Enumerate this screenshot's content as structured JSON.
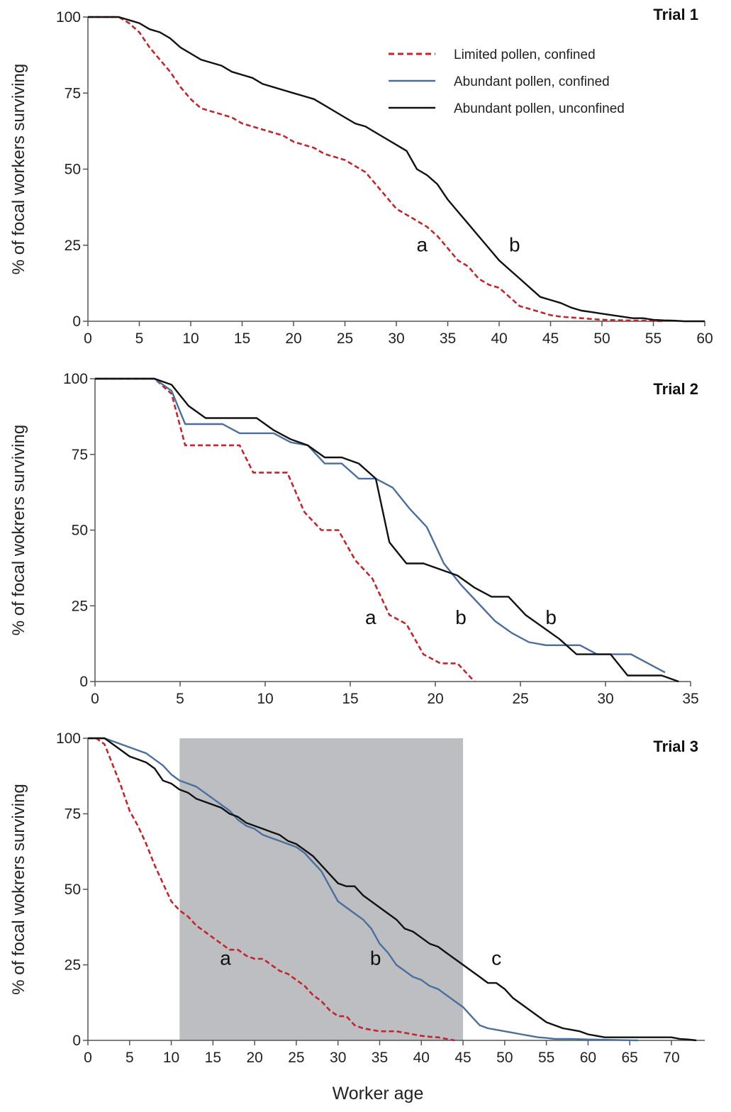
{
  "xlabel": "Worker age",
  "legend": [
    {
      "label": "Limited pollen, confined",
      "color": "#c0272d",
      "dash": true
    },
    {
      "label": "Abundant pollen, confined",
      "color": "#4a6f9c",
      "dash": false
    },
    {
      "label": "Abundant pollen, unconfined",
      "color": "#111111",
      "dash": false
    }
  ],
  "chart_data": [
    {
      "type": "line",
      "title": "Trial 1",
      "ylabel": "% of focal workers surviving",
      "xlim": [
        0,
        60
      ],
      "ylim": [
        0,
        100
      ],
      "xticks": [
        0,
        5,
        10,
        15,
        20,
        25,
        30,
        35,
        40,
        45,
        50,
        55,
        60
      ],
      "yticks": [
        0,
        25,
        50,
        75,
        100
      ],
      "series": [
        {
          "name": "Limited pollen, confined",
          "color": "#c0272d",
          "dash": true,
          "x": [
            0,
            3,
            4,
            5,
            6,
            7,
            8,
            9,
            10,
            11,
            12,
            13,
            14,
            15,
            16,
            17,
            18,
            19,
            20,
            21,
            22,
            23,
            24,
            25,
            26,
            27,
            28,
            29,
            30,
            31,
            32,
            33,
            34,
            35,
            36,
            37,
            38,
            39,
            40,
            41,
            42,
            43,
            44,
            45,
            46,
            48,
            50,
            52,
            54,
            56
          ],
          "y": [
            100,
            100,
            98,
            95,
            90,
            86,
            82,
            77,
            73,
            70,
            69,
            68,
            67,
            65,
            64,
            63,
            62,
            61,
            59,
            58,
            57,
            55,
            54,
            53,
            51,
            49,
            45,
            41,
            37,
            35,
            33,
            31,
            28,
            24,
            20,
            18,
            14,
            12,
            11,
            8,
            5,
            4,
            3,
            2,
            1.5,
            1,
            0.5,
            0.3,
            0.2,
            0
          ]
        },
        {
          "name": "Abundant pollen, unconfined",
          "color": "#111111",
          "dash": false,
          "x": [
            0,
            3,
            4,
            5,
            6,
            7,
            8,
            9,
            10,
            11,
            12,
            13,
            14,
            15,
            16,
            17,
            18,
            19,
            20,
            21,
            22,
            23,
            24,
            25,
            26,
            27,
            28,
            29,
            30,
            31,
            32,
            33,
            34,
            35,
            36,
            37,
            38,
            39,
            40,
            41,
            42,
            43,
            44,
            45,
            46,
            47,
            48,
            49,
            50,
            51,
            52,
            53,
            54,
            55,
            56,
            57,
            58,
            59,
            60
          ],
          "y": [
            100,
            100,
            99,
            98,
            96,
            95,
            93,
            90,
            88,
            86,
            85,
            84,
            82,
            81,
            80,
            78,
            77,
            76,
            75,
            74,
            73,
            71,
            69,
            67,
            65,
            64,
            62,
            60,
            58,
            56,
            50,
            48,
            45,
            40,
            36,
            32,
            28,
            24,
            20,
            17,
            14,
            11,
            8,
            7,
            6,
            4.5,
            3.5,
            3,
            2.5,
            2,
            1.5,
            1,
            1,
            0.5,
            0.3,
            0.2,
            0,
            0,
            0
          ]
        }
      ],
      "annotations": [
        {
          "text": "a",
          "x": 32.5,
          "y": 23
        },
        {
          "text": "b",
          "x": 41.5,
          "y": 23
        }
      ]
    },
    {
      "type": "line",
      "title": "Trial 2",
      "ylabel": "% of focal wokrers surviving",
      "xlim": [
        0,
        35
      ],
      "ylim": [
        0,
        100
      ],
      "xticks": [
        0,
        5,
        10,
        15,
        20,
        25,
        30,
        35
      ],
      "yticks": [
        0,
        25,
        50,
        75,
        100
      ],
      "series": [
        {
          "name": "Limited pollen, confined",
          "color": "#c0272d",
          "dash": true,
          "x": [
            0,
            3.5,
            4.5,
            5.3,
            6.5,
            7.5,
            8.5,
            9.3,
            10.5,
            11.3,
            12.3,
            13.3,
            14.3,
            15.3,
            16.3,
            17.3,
            18.3,
            19.3,
            20.3,
            21.3,
            22.3
          ],
          "y": [
            100,
            100,
            95,
            78,
            78,
            78,
            78,
            69,
            69,
            69,
            56,
            50,
            50,
            40,
            34,
            22,
            19,
            9,
            6,
            6,
            0
          ]
        },
        {
          "name": "Abundant pollen, confined",
          "color": "#4a6f9c",
          "dash": false,
          "x": [
            0,
            3.5,
            4.5,
            5.3,
            6.5,
            7.5,
            8.5,
            9.5,
            10.5,
            11.5,
            12.5,
            13.5,
            14.5,
            15.5,
            16.5,
            17.5,
            18.5,
            19.5,
            20.5,
            21.5,
            22.5,
            23.5,
            24.5,
            25.5,
            26.5,
            27.5,
            28.5,
            29.5,
            30.5,
            31.5,
            32.5,
            33.5
          ],
          "y": [
            100,
            100,
            96,
            85,
            85,
            85,
            82,
            82,
            82,
            79,
            78,
            72,
            72,
            67,
            67,
            64,
            57,
            51,
            39,
            32,
            26,
            20,
            16,
            13,
            12,
            12,
            12,
            9,
            9,
            9,
            6,
            3
          ]
        },
        {
          "name": "Abundant pollen, unconfined",
          "color": "#111111",
          "dash": false,
          "x": [
            0,
            3.5,
            4.5,
            5.5,
            6.5,
            7.5,
            8.5,
            9.5,
            10.5,
            11.5,
            12.5,
            13.5,
            14.5,
            15.5,
            16.5,
            17.3,
            18.3,
            19.3,
            20.3,
            21.3,
            22.3,
            23.3,
            24.3,
            25.3,
            26.3,
            27.3,
            28.3,
            29.3,
            30.3,
            31.3,
            32.3,
            33.3,
            34.3
          ],
          "y": [
            100,
            100,
            98,
            91,
            87,
            87,
            87,
            87,
            83,
            80,
            78,
            74,
            74,
            72,
            67,
            46,
            39,
            39,
            37,
            35,
            31,
            28,
            28,
            22,
            18,
            14,
            9,
            9,
            9,
            2,
            2,
            2,
            0
          ]
        }
      ],
      "annotations": [
        {
          "text": "a",
          "x": 16.2,
          "y": 19
        },
        {
          "text": "b",
          "x": 21.5,
          "y": 19
        },
        {
          "text": "b",
          "x": 26.8,
          "y": 19
        }
      ]
    },
    {
      "type": "line",
      "title": "Trial 3",
      "ylabel": "% of focal wokrers surviving",
      "xlim": [
        0,
        74
      ],
      "ylim": [
        0,
        100
      ],
      "xticks": [
        0,
        5,
        10,
        15,
        20,
        25,
        30,
        35,
        40,
        45,
        50,
        55,
        60,
        65,
        70
      ],
      "yticks": [
        0,
        25,
        50,
        75,
        100
      ],
      "shaded_region": {
        "x": [
          11,
          45
        ],
        "y": [
          0,
          100
        ],
        "color": "#bdbec2"
      },
      "series": [
        {
          "name": "Limited pollen, confined",
          "color": "#c0272d",
          "dash": true,
          "x": [
            0,
            1,
            2,
            3,
            4,
            5,
            6,
            7,
            8,
            9,
            10,
            11,
            12,
            13,
            14,
            15,
            16,
            17,
            18,
            19,
            20,
            21,
            22,
            23,
            24,
            25,
            26,
            27,
            28,
            29,
            30,
            31,
            32,
            33,
            34,
            35,
            36,
            37,
            38,
            39,
            40,
            41,
            42,
            43,
            44
          ],
          "y": [
            100,
            100,
            98,
            91,
            84,
            76,
            71,
            65,
            58,
            52,
            46,
            43,
            41,
            38,
            36,
            34,
            32,
            30,
            30,
            28,
            27,
            27,
            25,
            23,
            22,
            20,
            18,
            15,
            13,
            10,
            8,
            8,
            5,
            4,
            3.5,
            3,
            3,
            3,
            2.5,
            2,
            1.5,
            1.2,
            1,
            0.5,
            0
          ]
        },
        {
          "name": "Abundant pollen, confined",
          "color": "#4a6f9c",
          "dash": false,
          "x": [
            0,
            1,
            2,
            3,
            4,
            5,
            6,
            7,
            8,
            9,
            10,
            11,
            12,
            13,
            14,
            15,
            16,
            17,
            18,
            19,
            20,
            21,
            22,
            23,
            24,
            25,
            26,
            27,
            28,
            29,
            30,
            31,
            32,
            33,
            34,
            35,
            36,
            37,
            38,
            39,
            40,
            41,
            42,
            43,
            44,
            45,
            46,
            47,
            48,
            49,
            50,
            51,
            52,
            53,
            54,
            55,
            56,
            58,
            60,
            62,
            64,
            66
          ],
          "y": [
            100,
            100,
            100,
            99,
            98,
            97,
            96,
            95,
            93,
            91,
            88,
            86,
            85,
            84,
            82,
            80,
            78,
            76,
            73,
            71,
            70,
            68,
            67,
            66,
            65,
            64,
            62,
            59,
            56,
            51,
            46,
            44,
            42,
            40,
            37,
            32,
            29,
            25,
            23,
            21,
            20,
            18,
            17,
            15,
            13,
            11,
            8,
            5,
            4,
            3.5,
            3,
            2.5,
            2,
            1.5,
            1,
            0.8,
            0.5,
            0.5,
            0.3,
            0.2,
            0.1,
            0
          ]
        },
        {
          "name": "Abundant pollen, unconfined",
          "color": "#111111",
          "dash": false,
          "x": [
            0,
            1,
            2,
            3,
            4,
            5,
            6,
            7,
            8,
            9,
            10,
            11,
            12,
            13,
            14,
            15,
            16,
            17,
            18,
            19,
            20,
            21,
            22,
            23,
            24,
            25,
            26,
            27,
            28,
            29,
            30,
            31,
            32,
            33,
            34,
            35,
            36,
            37,
            38,
            39,
            40,
            41,
            42,
            43,
            44,
            45,
            46,
            47,
            48,
            49,
            50,
            51,
            52,
            53,
            54,
            55,
            56,
            57,
            58,
            59,
            60,
            61,
            62,
            63,
            64,
            65,
            66,
            67,
            68,
            69,
            70,
            71,
            72,
            73
          ],
          "y": [
            100,
            100,
            100,
            98,
            96,
            94,
            93,
            92,
            90,
            86,
            85,
            83,
            82,
            80,
            79,
            78,
            77,
            75,
            74,
            72,
            71,
            70,
            69,
            68,
            66,
            65,
            63,
            61,
            58,
            55,
            52,
            51,
            51,
            48,
            46,
            44,
            42,
            40,
            37,
            36,
            34,
            32,
            31,
            29,
            27,
            25,
            23,
            21,
            19,
            19,
            17,
            14,
            12,
            10,
            8,
            6,
            5,
            4,
            3.5,
            3,
            2,
            1.5,
            1,
            1,
            1,
            1,
            1,
            1,
            1,
            1,
            1,
            0.5,
            0.3,
            0
          ]
        }
      ],
      "annotations": [
        {
          "text": "a",
          "x": 16.5,
          "y": 25
        },
        {
          "text": "b",
          "x": 34.5,
          "y": 25
        },
        {
          "text": "c",
          "x": 49,
          "y": 25
        }
      ]
    }
  ]
}
